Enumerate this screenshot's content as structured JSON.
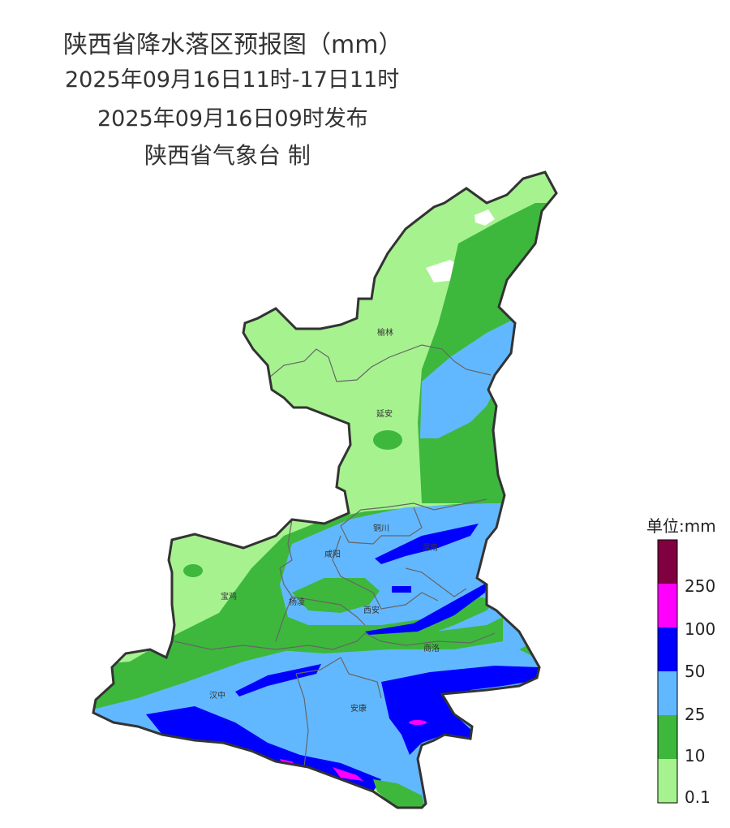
{
  "title": {
    "line1": "陕西省降水落区预报图（mm）",
    "line2": "2025年09月16日11时-17日11时",
    "line3": "2025年09月16日09时发布",
    "line4": "陕西省气象台 制"
  },
  "cities": [
    "榆林",
    "延安",
    "铜川",
    "渭南",
    "咸阳",
    "宝鸡",
    "杨凌",
    "西安",
    "商洛",
    "汉中",
    "安康"
  ],
  "legend": {
    "unit": "单位:mm",
    "labels": [
      "250",
      "100",
      "50",
      "25",
      "10",
      "0.1"
    ],
    "colors": [
      "#800040",
      "#ff00ff",
      "#0000ff",
      "#62b8ff",
      "#3db83d",
      "#a6f28f"
    ]
  },
  "colors": {
    "boundary": "#333333",
    "inner_boundary": "#666666"
  }
}
